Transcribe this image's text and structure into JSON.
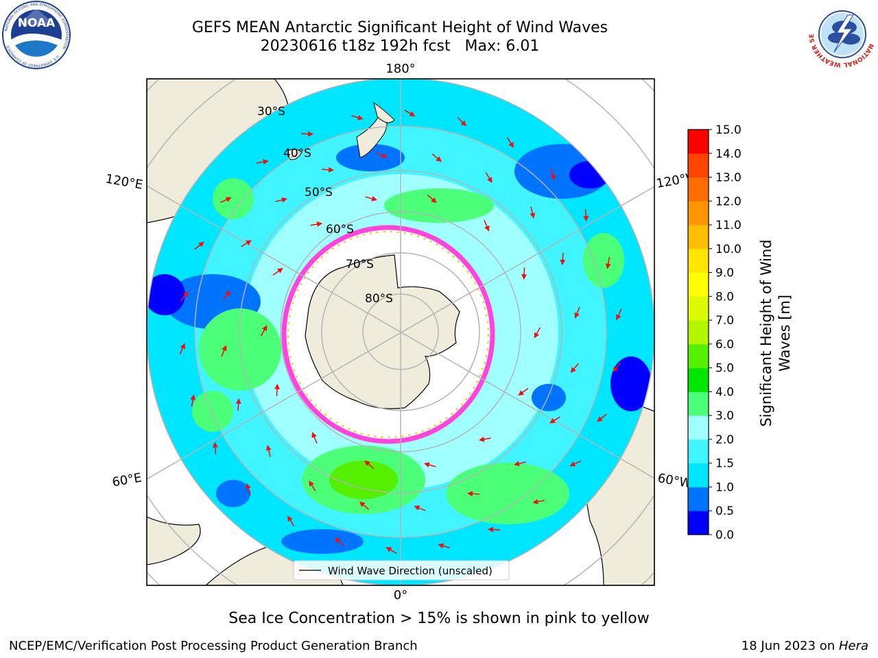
{
  "header": {
    "title_line1": "GEFS MEAN Antarctic Significant Height of Wind Waves",
    "title_line2": "20230616 t18z 192h fcst   Max: 6.01"
  },
  "logos": {
    "noaa_text": "NOAA",
    "noaa_ring_top": "NATIONAL OCEANIC AND ATMOSPHERIC ADMINISTRATION",
    "noaa_ring_bottom": "U.S. DEPARTMENT OF COMMERCE",
    "nws_ring": "NATIONAL WEATHER SERVICE"
  },
  "map": {
    "lon_labels": {
      "top": "180°",
      "bottom": "0°",
      "left_upper": "120°E",
      "left_lower": "60°E",
      "right_upper": "120°W",
      "right_lower": "60°W"
    },
    "lat_labels": [
      "30°S",
      "40°S",
      "50°S",
      "60°S",
      "70°S",
      "80°S"
    ],
    "legend_label": "Wind Wave Direction (unscaled)"
  },
  "colorbar": {
    "label_line1": "Significant Height of Wind",
    "label_line2": "Waves [m]",
    "ticks": [
      "0.0",
      "0.5",
      "1.0",
      "1.5",
      "2.0",
      "3.0",
      "4.0",
      "5.0",
      "6.0",
      "7.0",
      "8.0",
      "9.0",
      "10.0",
      "11.0",
      "12.0",
      "13.0",
      "14.0",
      "15.0"
    ],
    "colors": [
      "#0000ff",
      "#0073ff",
      "#00e6ff",
      "#40f5ff",
      "#a0ffff",
      "#4cff78",
      "#00e600",
      "#55f000",
      "#b4f500",
      "#dcfa00",
      "#ffff00",
      "#ffe600",
      "#ffbe00",
      "#ff9600",
      "#ff6e00",
      "#ff4600",
      "#ff0000"
    ]
  },
  "note": "Sea Ice Concentration > 15% is shown in pink to yellow",
  "footer": {
    "left": "NCEP/EMC/Verification Post Processing Product Generation Branch",
    "date": "18 Jun 2023 on ",
    "machine": "Hera"
  }
}
